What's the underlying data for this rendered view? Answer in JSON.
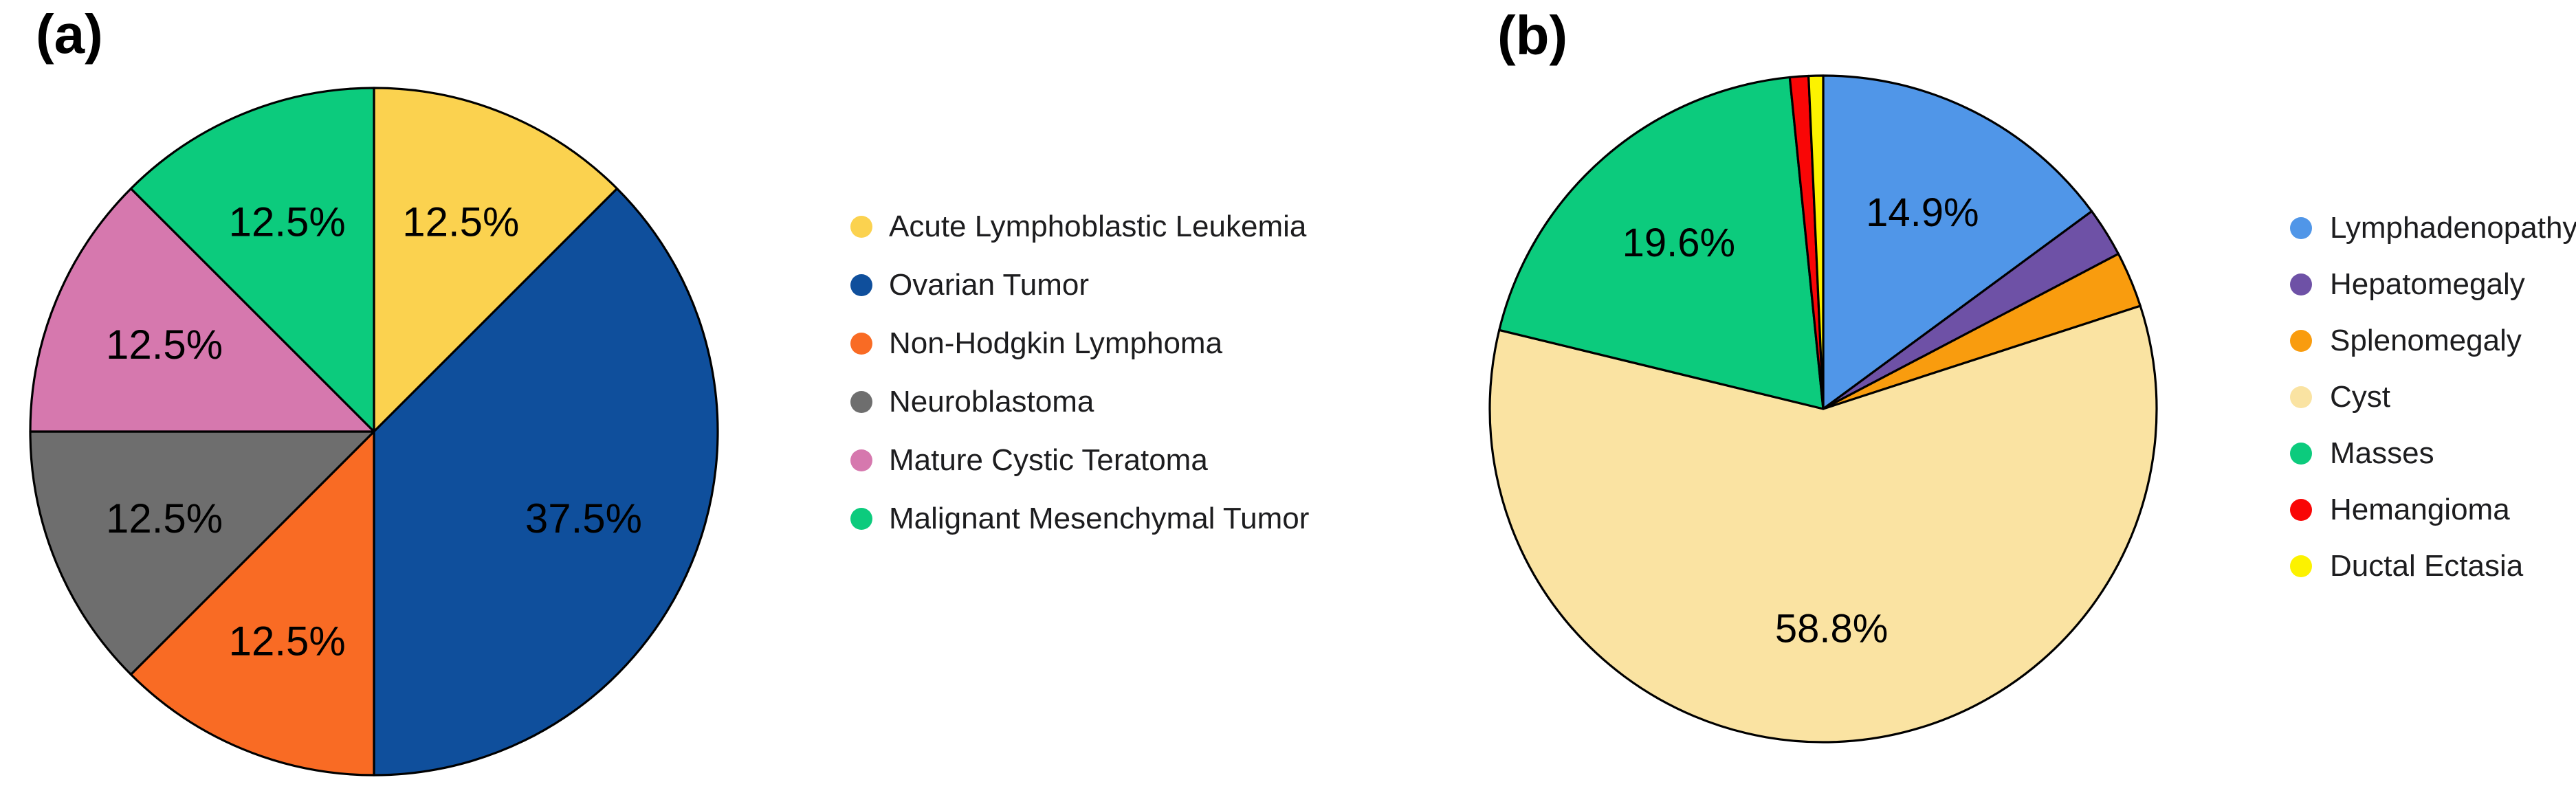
{
  "figure": {
    "background": "#ffffff",
    "panels": [
      {
        "tag": "(a)"
      },
      {
        "tag": "(b)"
      }
    ]
  },
  "chart_data": [
    {
      "type": "pie",
      "panel_tag": "(a)",
      "start_angle_deg": 0,
      "direction": "clockwise",
      "legend_position": "right",
      "outline_color": "#000000",
      "slices": [
        {
          "label": "Acute Lymphoblastic Leukemia",
          "value": 12.5,
          "pct_label": "12.5%",
          "label_shown": true,
          "color": "#FBD24F"
        },
        {
          "label": "Ovarian Tumor",
          "value": 37.5,
          "pct_label": "37.5%",
          "label_shown": true,
          "color": "#0F4F9C"
        },
        {
          "label": "Non-Hodgkin Lymphoma",
          "value": 12.5,
          "pct_label": "12.5%",
          "label_shown": true,
          "color": "#F96B24"
        },
        {
          "label": "Neuroblastoma",
          "value": 12.5,
          "pct_label": "12.5%",
          "label_shown": true,
          "color": "#6E6E6E"
        },
        {
          "label": "Mature Cystic Teratoma",
          "value": 12.5,
          "pct_label": "12.5%",
          "label_shown": true,
          "color": "#D678AE"
        },
        {
          "label": "Malignant Mesenchymal Tumor",
          "value": 12.5,
          "pct_label": "12.5%",
          "label_shown": true,
          "color": "#0CCB7D"
        }
      ]
    },
    {
      "type": "pie",
      "panel_tag": "(b)",
      "start_angle_deg": 0,
      "direction": "clockwise",
      "legend_position": "right",
      "outline_color": "#000000",
      "slices": [
        {
          "label": "Lymphadenopathy",
          "value": 14.9,
          "pct_label": "14.9%",
          "label_shown": true,
          "color": "#5096E8"
        },
        {
          "label": "Hepatomegaly",
          "value": 2.4,
          "pct_label": "",
          "label_shown": false,
          "estimated": true,
          "color": "#6E51A6"
        },
        {
          "label": "Splenomegaly",
          "value": 2.7,
          "pct_label": "",
          "label_shown": false,
          "estimated": true,
          "color": "#F99C0E"
        },
        {
          "label": "Cyst",
          "value": 58.8,
          "pct_label": "58.8%",
          "label_shown": true,
          "color": "#FAE3A2"
        },
        {
          "label": "Masses",
          "value": 19.6,
          "pct_label": "19.6%",
          "label_shown": true,
          "color": "#0CCB7D"
        },
        {
          "label": "Hemangioma",
          "value": 0.9,
          "pct_label": "",
          "label_shown": false,
          "estimated": true,
          "color": "#F90606"
        },
        {
          "label": "Ductal Ectasia",
          "value": 0.7,
          "pct_label": "",
          "label_shown": false,
          "estimated": true,
          "color": "#FCF200"
        }
      ]
    }
  ]
}
